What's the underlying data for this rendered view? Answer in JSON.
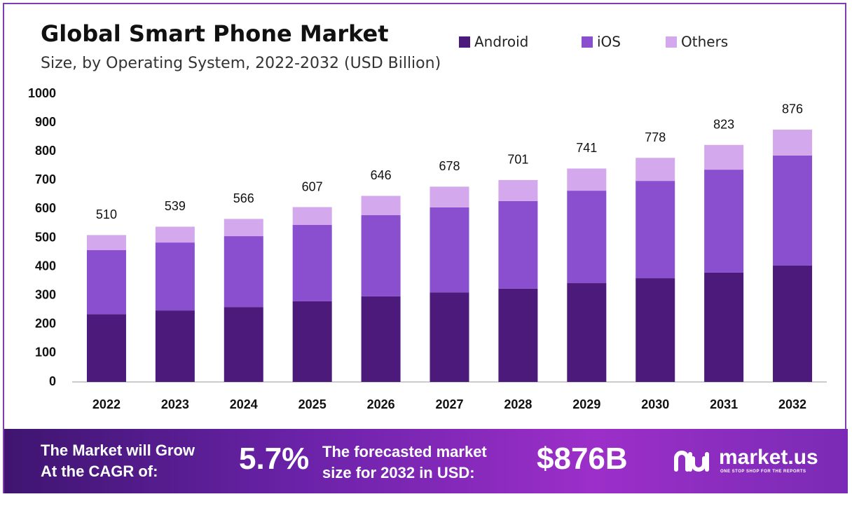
{
  "chart_data": {
    "type": "stacked-bar",
    "title": "Global Smart Phone Market",
    "subtitle": "Size, by Operating System, 2022-2032 (USD Billion)",
    "categories": [
      "2022",
      "2023",
      "2024",
      "2025",
      "2026",
      "2027",
      "2028",
      "2029",
      "2030",
      "2031",
      "2032"
    ],
    "series": [
      {
        "name": "Android",
        "color": "#4b1a7a",
        "values": [
          235,
          248,
          260,
          280,
          297,
          311,
          324,
          343,
          360,
          380,
          404
        ]
      },
      {
        "name": "iOS",
        "color": "#8a4fcf",
        "values": [
          223,
          236,
          246,
          265,
          282,
          295,
          304,
          321,
          338,
          357,
          382
        ]
      },
      {
        "name": "Others",
        "color": "#d4a8ec",
        "values": [
          52,
          55,
          60,
          62,
          67,
          72,
          73,
          77,
          80,
          86,
          90
        ]
      }
    ],
    "totals": [
      510,
      539,
      566,
      607,
      646,
      678,
      701,
      741,
      778,
      823,
      876
    ],
    "ylim": [
      0,
      1000
    ],
    "yticks": [
      0,
      100,
      200,
      300,
      400,
      500,
      600,
      700,
      800,
      900,
      1000
    ],
    "grid": false,
    "legend": "top"
  },
  "banner": {
    "cagr_label": [
      "The Market will Grow",
      "At the CAGR of:"
    ],
    "cagr": "5.7%",
    "forecast_label": [
      "The forecasted market",
      "size for 2032 in USD:"
    ],
    "forecast": "$876B",
    "brand": "market.us",
    "tagline": "ONE STOP SHOP FOR THE REPORTS"
  }
}
